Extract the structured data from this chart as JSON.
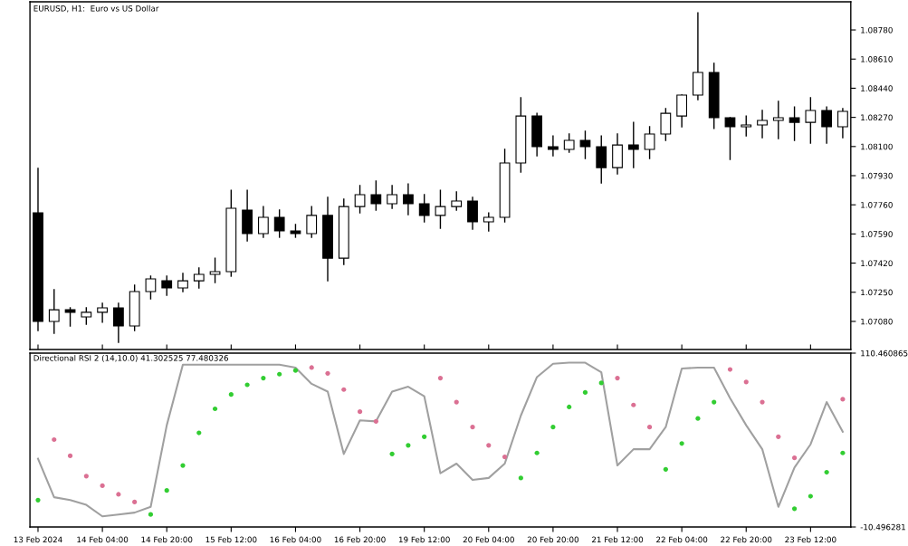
{
  "chart_data": [
    {
      "type": "candlestick",
      "title": "EURUSD, H1:  Euro vs US Dollar",
      "categories": [
        null,
        null,
        null,
        null,
        null,
        null,
        null,
        null,
        null,
        null,
        null,
        null,
        null,
        null,
        null,
        null,
        null,
        null,
        null,
        null,
        null,
        null,
        null,
        null,
        null,
        null,
        null,
        null,
        null,
        null,
        null,
        null,
        null,
        null,
        null,
        null,
        null,
        null,
        null,
        null,
        null,
        null,
        null,
        null,
        null,
        null,
        null,
        null,
        null,
        null,
        null
      ],
      "ohlc": [
        [
          1.07713,
          1.07972,
          1.07027,
          1.0708
        ],
        [
          1.0708,
          1.07265,
          1.07011,
          1.07148
        ],
        [
          1.07148,
          1.07159,
          1.07053,
          1.07133
        ],
        [
          1.07106,
          1.07159,
          1.07064,
          1.07133
        ],
        [
          1.07133,
          1.07185,
          1.07075,
          1.07159
        ],
        [
          1.07159,
          1.07185,
          1.06958,
          1.07053
        ],
        [
          1.07053,
          1.07291,
          1.07027,
          1.07254
        ],
        [
          1.07254,
          1.07344,
          1.07212,
          1.07328
        ],
        [
          1.07317,
          1.07344,
          1.07233,
          1.07275
        ],
        [
          1.07275,
          1.0736,
          1.07254,
          1.07317
        ],
        [
          1.07317,
          1.07391,
          1.07275,
          1.07354
        ],
        [
          1.07354,
          1.07449,
          1.07307,
          1.0737
        ],
        [
          1.0737,
          1.07845,
          1.07344,
          1.0774
        ],
        [
          1.07729,
          1.07845,
          1.0755,
          1.07592
        ],
        [
          1.07592,
          1.0775,
          1.07571,
          1.07687
        ],
        [
          1.07687,
          1.07729,
          1.07571,
          1.07608
        ],
        [
          1.07608,
          1.07645,
          1.07571,
          1.07592
        ],
        [
          1.07592,
          1.0775,
          1.07571,
          1.07698
        ],
        [
          1.07698,
          1.07803,
          1.07317,
          1.07449
        ],
        [
          1.07449,
          1.07793,
          1.07412,
          1.0775
        ],
        [
          1.0775,
          1.07872,
          1.07713,
          1.07819
        ],
        [
          1.07819,
          1.07898,
          1.07729,
          1.07766
        ],
        [
          1.07766,
          1.07872,
          1.0774,
          1.07819
        ],
        [
          1.07819,
          1.07882,
          1.07703,
          1.07766
        ],
        [
          1.07766,
          1.07819,
          1.07661,
          1.07698
        ],
        [
          1.07698,
          1.07845,
          1.07624,
          1.0775
        ],
        [
          1.0775,
          1.07835,
          1.07729,
          1.07782
        ],
        [
          1.07782,
          1.07803,
          1.07618,
          1.07661
        ],
        [
          1.07661,
          1.07713,
          1.07608,
          1.07687
        ],
        [
          1.07687,
          1.08083,
          1.07661,
          1.08004
        ],
        [
          1.08004,
          1.08384,
          1.07951,
          1.08278
        ],
        [
          1.08278,
          1.08294,
          1.08046,
          1.08099
        ],
        [
          1.08099,
          1.08162,
          1.08046,
          1.08083
        ],
        [
          1.08083,
          1.08173,
          1.08067,
          1.08136
        ],
        [
          1.08136,
          1.08189,
          1.0803,
          1.08099
        ],
        [
          1.08099,
          1.08162,
          1.07888,
          1.07977
        ],
        [
          1.07977,
          1.08173,
          1.0794,
          1.08109
        ],
        [
          1.08109,
          1.08241,
          1.07977,
          1.08083
        ],
        [
          1.08083,
          1.08215,
          1.0803,
          1.08173
        ],
        [
          1.08173,
          1.08321,
          1.08136,
          1.08294
        ],
        [
          1.08278,
          1.084,
          1.08215,
          1.084
        ],
        [
          1.084,
          1.0888,
          1.08373,
          1.08532
        ],
        [
          1.08532,
          1.08585,
          1.08205,
          1.08268
        ],
        [
          1.08268,
          1.08268,
          1.08025,
          1.08215
        ],
        [
          1.08215,
          1.08278,
          1.08162,
          1.08226
        ],
        [
          1.08226,
          1.0831,
          1.08152,
          1.08252
        ],
        [
          1.08252,
          1.08363,
          1.08146,
          1.08268
        ],
        [
          1.08268,
          1.08331,
          1.08136,
          1.08241
        ],
        [
          1.08241,
          1.08384,
          1.0812,
          1.0831
        ],
        [
          1.0831,
          1.08331,
          1.0812,
          1.08215
        ],
        [
          1.08215,
          1.08321,
          1.08152,
          1.08305
        ]
      ],
      "ylim": [
        1.06916,
        1.08944
      ],
      "yticks": [
        {
          "value": 1.0708,
          "label": "1.07080"
        },
        {
          "value": 1.0725,
          "label": "1.07250"
        },
        {
          "value": 1.0742,
          "label": "1.07420"
        },
        {
          "value": 1.0759,
          "label": "1.07590"
        },
        {
          "value": 1.0776,
          "label": "1.07760"
        },
        {
          "value": 1.0793,
          "label": "1.07930"
        },
        {
          "value": 1.081,
          "label": "1.08100"
        },
        {
          "value": 1.0827,
          "label": "1.08270"
        },
        {
          "value": 1.0844,
          "label": "1.08440"
        },
        {
          "value": 1.0861,
          "label": "1.08610"
        },
        {
          "value": 1.0878,
          "label": "1.08780"
        }
      ],
      "tick_labels": "y"
    },
    {
      "type": "line",
      "title": "Directional RSI 2 (14,10.0) 41.302525 77.480326",
      "categories": [
        "13 Feb 2024",
        null,
        null,
        null,
        "14 Feb 04:00",
        null,
        null,
        null,
        "14 Feb 20:00",
        null,
        null,
        null,
        "15 Feb 12:00",
        null,
        null,
        null,
        "16 Feb 04:00",
        null,
        null,
        null,
        "16 Feb 20:00",
        null,
        null,
        null,
        "19 Feb 12:00",
        null,
        null,
        null,
        "20 Feb 04:00",
        null,
        null,
        null,
        "20 Feb 20:00",
        null,
        null,
        null,
        "21 Feb 12:00",
        null,
        null,
        null,
        "22 Feb 04:00",
        null,
        null,
        null,
        "22 Feb 20:00",
        null,
        null,
        null,
        "23 Feb 12:00",
        null,
        null
      ],
      "series": [
        {
          "type": "line",
          "color": "#a0a0a0",
          "values": [
            37.0,
            10.2,
            8.2,
            4.9,
            -3.1,
            -1.8,
            -0.5,
            3.5,
            60.3,
            102.4,
            102.4,
            102.4,
            102.4,
            102.4,
            102.4,
            102.4,
            100.4,
            89.1,
            83.7,
            40.3,
            63.7,
            63.0,
            83.7,
            87.1,
            80.4,
            26.9,
            33.6,
            22.3,
            23.6,
            33.6,
            67.0,
            93.8,
            103.1,
            103.8,
            103.8,
            97.1,
            32.3,
            43.6,
            43.6,
            59.0,
            99.8,
            100.4,
            100.4,
            79.1,
            60.3,
            43.6,
            3.5,
            30.9,
            47.0,
            76.4,
            55.7
          ]
        },
        {
          "type": "scatter",
          "color": "#32cd32",
          "values": [
            8.2,
            null,
            null,
            null,
            null,
            null,
            null,
            -1.8,
            14.9,
            32.3,
            55.0,
            71.7,
            81.7,
            88.4,
            93.1,
            95.8,
            98.4,
            null,
            null,
            null,
            null,
            null,
            40.3,
            46.3,
            52.3,
            null,
            null,
            null,
            null,
            null,
            23.6,
            41.0,
            59.0,
            73.0,
            83.1,
            89.7,
            null,
            null,
            null,
            29.6,
            47.6,
            65.0,
            76.4,
            null,
            null,
            null,
            null,
            2.2,
            10.9,
            27.6,
            41.0
          ]
        },
        {
          "type": "scatter",
          "color": "#db7093",
          "values": [
            null,
            50.3,
            39.0,
            24.9,
            18.2,
            12.2,
            6.9,
            null,
            null,
            null,
            null,
            null,
            null,
            null,
            null,
            null,
            null,
            100.4,
            96.4,
            85.1,
            69.7,
            63.0,
            null,
            null,
            null,
            93.1,
            76.4,
            59.0,
            46.3,
            38.3,
            null,
            null,
            null,
            null,
            null,
            null,
            93.1,
            74.4,
            59.0,
            null,
            null,
            null,
            null,
            99.1,
            90.4,
            76.4,
            52.3,
            37.6,
            null,
            null,
            78.4
          ]
        }
      ],
      "ylim": [
        -10.496281,
        110.460865
      ],
      "yticks": [
        {
          "value": -10.496281,
          "label": "-10.496281"
        },
        {
          "value": 110.460865,
          "label": "110.460865"
        }
      ]
    }
  ]
}
